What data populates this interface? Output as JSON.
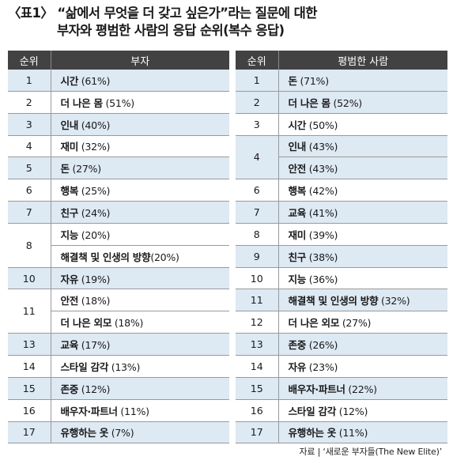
{
  "title": {
    "line1": "〈표1〉 “삶에서 무엇을 더 갖고 싶은가”라는 질문에 대한",
    "line2": "부자와 평범한 사람의 응답 순위(복수 응답)"
  },
  "left_table": {
    "headers": [
      "순위",
      "부자"
    ],
    "rows": [
      {
        "rank": "1",
        "items": [
          {
            "name": "시간",
            "pct": " (61%)"
          }
        ],
        "shade": true
      },
      {
        "rank": "2",
        "items": [
          {
            "name": "더 나은 몸",
            "pct": " (51%)"
          }
        ],
        "shade": false
      },
      {
        "rank": "3",
        "items": [
          {
            "name": "인내",
            "pct": " (40%)"
          }
        ],
        "shade": true
      },
      {
        "rank": "4",
        "items": [
          {
            "name": "재미",
            "pct": " (32%)"
          }
        ],
        "shade": false
      },
      {
        "rank": "5",
        "items": [
          {
            "name": "돈",
            "pct": " (27%)"
          }
        ],
        "shade": true
      },
      {
        "rank": "6",
        "items": [
          {
            "name": "행복",
            "pct": " (25%)"
          }
        ],
        "shade": false
      },
      {
        "rank": "7",
        "items": [
          {
            "name": "친구",
            "pct": " (24%)"
          }
        ],
        "shade": true
      },
      {
        "rank": "8",
        "items": [
          {
            "name": "지능",
            "pct": " (20%)"
          },
          {
            "name": "해결책 및 인생의 방향",
            "pct": "(20%)"
          }
        ],
        "shade": false
      },
      {
        "rank": "10",
        "items": [
          {
            "name": "자유",
            "pct": " (19%)"
          }
        ],
        "shade": true
      },
      {
        "rank": "11",
        "items": [
          {
            "name": "안전",
            "pct": " (18%)"
          },
          {
            "name": "더 나은 외모",
            "pct": " (18%)"
          }
        ],
        "shade": false
      },
      {
        "rank": "13",
        "items": [
          {
            "name": "교육",
            "pct": " (17%)"
          }
        ],
        "shade": true
      },
      {
        "rank": "14",
        "items": [
          {
            "name": "스타일 감각",
            "pct": " (13%)"
          }
        ],
        "shade": false
      },
      {
        "rank": "15",
        "items": [
          {
            "name": "존중",
            "pct": " (12%)"
          }
        ],
        "shade": true
      },
      {
        "rank": "16",
        "items": [
          {
            "name": "배우자·파트너",
            "pct": " (11%)"
          }
        ],
        "shade": false
      },
      {
        "rank": "17",
        "items": [
          {
            "name": "유행하는 옷",
            "pct": " (7%)"
          }
        ],
        "shade": true
      }
    ]
  },
  "right_table": {
    "headers": [
      "순위",
      "평범한 사람"
    ],
    "rows": [
      {
        "rank": "1",
        "items": [
          {
            "name": "돈",
            "pct": " (71%)"
          }
        ],
        "shade": true
      },
      {
        "rank": "2",
        "items": [
          {
            "name": "더 나은 몸",
            "pct": " (52%)"
          }
        ],
        "shade": true
      },
      {
        "rank": "3",
        "items": [
          {
            "name": "시간",
            "pct": " (50%)"
          }
        ],
        "shade": false
      },
      {
        "rank": "4",
        "items": [
          {
            "name": "인내",
            "pct": " (43%)"
          },
          {
            "name": "안전",
            "pct": " (43%)"
          }
        ],
        "shade": true
      },
      {
        "rank": "6",
        "items": [
          {
            "name": "행복",
            "pct": " (42%)"
          }
        ],
        "shade": false
      },
      {
        "rank": "7",
        "items": [
          {
            "name": "교육",
            "pct": " (41%)"
          }
        ],
        "shade": true
      },
      {
        "rank": "8",
        "items": [
          {
            "name": "재미",
            "pct": " (39%)"
          }
        ],
        "shade": false
      },
      {
        "rank": "9",
        "items": [
          {
            "name": "친구",
            "pct": " (38%)"
          }
        ],
        "shade": true
      },
      {
        "rank": "10",
        "items": [
          {
            "name": "지능",
            "pct": " (36%)"
          }
        ],
        "shade": false
      },
      {
        "rank": "11",
        "items": [
          {
            "name": "해결책 및 인생의 방향",
            "pct": " (32%)"
          }
        ],
        "shade": true
      },
      {
        "rank": "12",
        "items": [
          {
            "name": "더 나은 외모",
            "pct": " (27%)"
          }
        ],
        "shade": false
      },
      {
        "rank": "13",
        "items": [
          {
            "name": "존중",
            "pct": " (26%)"
          }
        ],
        "shade": true
      },
      {
        "rank": "14",
        "items": [
          {
            "name": "자유",
            "pct": " (23%)"
          }
        ],
        "shade": false
      },
      {
        "rank": "15",
        "items": [
          {
            "name": "배우자·파트너",
            "pct": " (22%)"
          }
        ],
        "shade": true
      },
      {
        "rank": "16",
        "items": [
          {
            "name": "스타일 감각",
            "pct": " (12%)"
          }
        ],
        "shade": false
      },
      {
        "rank": "17",
        "items": [
          {
            "name": "유행하는 옷",
            "pct": " (11%)"
          }
        ],
        "shade": true
      }
    ]
  },
  "source": "자료 | ‘새로운 부자들(The New Elite)’",
  "colors": {
    "header_bg": "#424242",
    "row_highlight": "#dde9f3"
  }
}
